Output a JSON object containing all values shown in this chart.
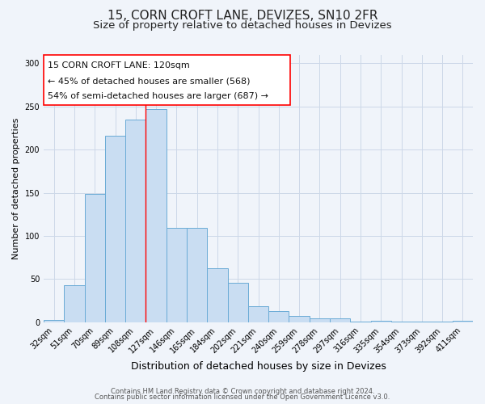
{
  "title": "15, CORN CROFT LANE, DEVIZES, SN10 2FR",
  "subtitle": "Size of property relative to detached houses in Devizes",
  "xlabel": "Distribution of detached houses by size in Devizes",
  "ylabel": "Number of detached properties",
  "bar_labels": [
    "32sqm",
    "51sqm",
    "70sqm",
    "89sqm",
    "108sqm",
    "127sqm",
    "146sqm",
    "165sqm",
    "184sqm",
    "202sqm",
    "221sqm",
    "240sqm",
    "259sqm",
    "278sqm",
    "297sqm",
    "316sqm",
    "335sqm",
    "354sqm",
    "373sqm",
    "392sqm",
    "411sqm"
  ],
  "bar_values": [
    3,
    43,
    149,
    216,
    235,
    247,
    109,
    109,
    63,
    46,
    19,
    13,
    7,
    5,
    5,
    1,
    2,
    1,
    1,
    1,
    2
  ],
  "bar_color": "#c9ddf2",
  "bar_edge_color": "#6aabd6",
  "ylim": [
    0,
    310
  ],
  "yticks": [
    0,
    50,
    100,
    150,
    200,
    250,
    300
  ],
  "red_line_x": 4.5,
  "annotation_title": "15 CORN CROFT LANE: 120sqm",
  "annotation_line1": "← 45% of detached houses are smaller (568)",
  "annotation_line2": "54% of semi-detached houses are larger (687) →",
  "footer1": "Contains HM Land Registry data © Crown copyright and database right 2024.",
  "footer2": "Contains public sector information licensed under the Open Government Licence v3.0.",
  "bg_color": "#f0f4fa",
  "grid_color": "#ccd8e8",
  "title_fontsize": 11,
  "subtitle_fontsize": 9.5,
  "xlabel_fontsize": 9,
  "ylabel_fontsize": 8,
  "tick_fontsize": 7,
  "annotation_fontsize": 8,
  "footer_fontsize": 6
}
